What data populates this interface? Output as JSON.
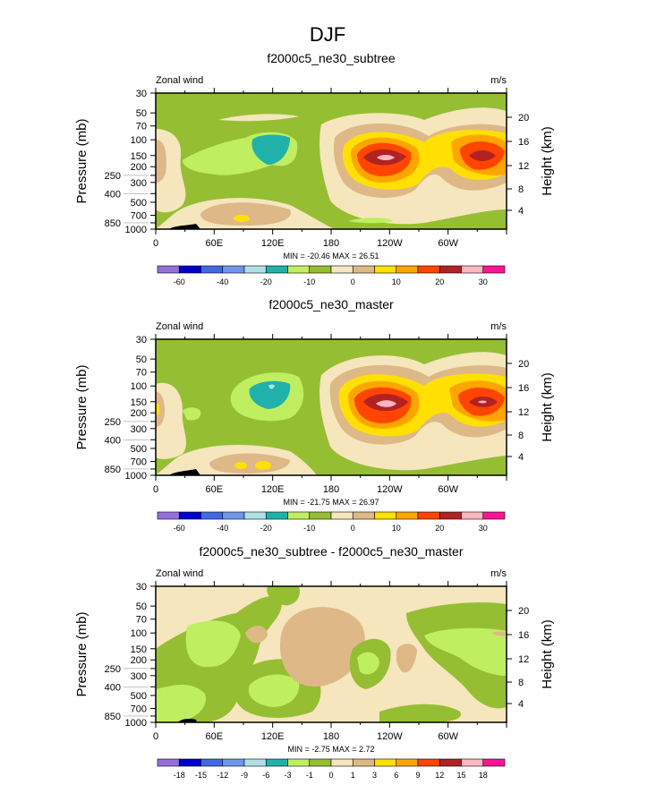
{
  "figure_title": "DJF",
  "colors": [
    "#9370DB",
    "#0000CD",
    "#4169E1",
    "#6F96ED",
    "#B0E0E6",
    "#20B2AA",
    "#BFEF60",
    "#96BE32",
    "#F5E6BE",
    "#DEB887",
    "#FFE000",
    "#FFA500",
    "#FF4500",
    "#B22222",
    "#FFB6C1",
    "#FF1493"
  ],
  "chart_data": [
    {
      "type": "heatmap",
      "title": "f2000c5_ne30_subtree",
      "left_label": "Zonal wind",
      "right_label": "m/s",
      "ylabel": "Pressure (mb)",
      "ylabel_right": "Height (km)",
      "xticks": [
        "0",
        "60E",
        "120E",
        "180",
        "120W",
        "60W"
      ],
      "yticks": [
        "30",
        "50",
        "70",
        "100",
        "150",
        "200",
        "250",
        "300",
        "400",
        "500",
        "700",
        "850",
        "1000"
      ],
      "yticks_right": [
        "20",
        "16",
        "12",
        "8",
        "4"
      ],
      "ylim": [
        1000,
        30
      ],
      "stats": "MIN = -20.46  MAX =  26.51",
      "levels": [
        "-60",
        "-50",
        "-40",
        "-30",
        "-20",
        "-15",
        "-10",
        "-5",
        "0",
        "5",
        "10",
        "15",
        "20",
        "25",
        "30"
      ],
      "level_labels": [
        "-60",
        "",
        "-40",
        "",
        "-20",
        "",
        "-10",
        "",
        "0",
        "",
        "10",
        "",
        "20",
        "",
        "30"
      ]
    },
    {
      "type": "heatmap",
      "title": "f2000c5_ne30_master",
      "left_label": "Zonal wind",
      "right_label": "m/s",
      "ylabel": "Pressure (mb)",
      "ylabel_right": "Height (km)",
      "xticks": [
        "0",
        "60E",
        "120E",
        "180",
        "120W",
        "60W"
      ],
      "yticks": [
        "30",
        "50",
        "70",
        "100",
        "150",
        "200",
        "250",
        "300",
        "400",
        "500",
        "700",
        "850",
        "1000"
      ],
      "yticks_right": [
        "20",
        "16",
        "12",
        "8",
        "4"
      ],
      "ylim": [
        1000,
        30
      ],
      "stats": "MIN = -21.75  MAX =  26.97",
      "levels": [
        "-60",
        "-50",
        "-40",
        "-30",
        "-20",
        "-15",
        "-10",
        "-5",
        "0",
        "5",
        "10",
        "15",
        "20",
        "25",
        "30"
      ],
      "level_labels": [
        "-60",
        "",
        "-40",
        "",
        "-20",
        "",
        "-10",
        "",
        "0",
        "",
        "10",
        "",
        "20",
        "",
        "30"
      ]
    },
    {
      "type": "heatmap",
      "title": "f2000c5_ne30_subtree - f2000c5_ne30_master",
      "left_label": "Zonal wind",
      "right_label": "m/s",
      "ylabel": "Pressure (mb)",
      "ylabel_right": "Height (km)",
      "xticks": [
        "0",
        "60E",
        "120E",
        "180",
        "120W",
        "60W"
      ],
      "yticks": [
        "30",
        "50",
        "70",
        "100",
        "150",
        "200",
        "250",
        "300",
        "400",
        "500",
        "700",
        "850",
        "1000"
      ],
      "yticks_right": [
        "20",
        "16",
        "12",
        "8",
        "4"
      ],
      "ylim": [
        1000,
        30
      ],
      "stats": "MIN =  -2.75  MAX =   2.72",
      "levels": [
        "-18",
        "-15",
        "-12",
        "-9",
        "-6",
        "-3",
        "-1",
        "0",
        "1",
        "3",
        "6",
        "9",
        "12",
        "15",
        "18"
      ],
      "level_labels": [
        "-18",
        "-15",
        "-12",
        "-9",
        "-6",
        "-3",
        "-1",
        "0",
        "1",
        "3",
        "6",
        "9",
        "12",
        "15",
        "18"
      ]
    }
  ]
}
